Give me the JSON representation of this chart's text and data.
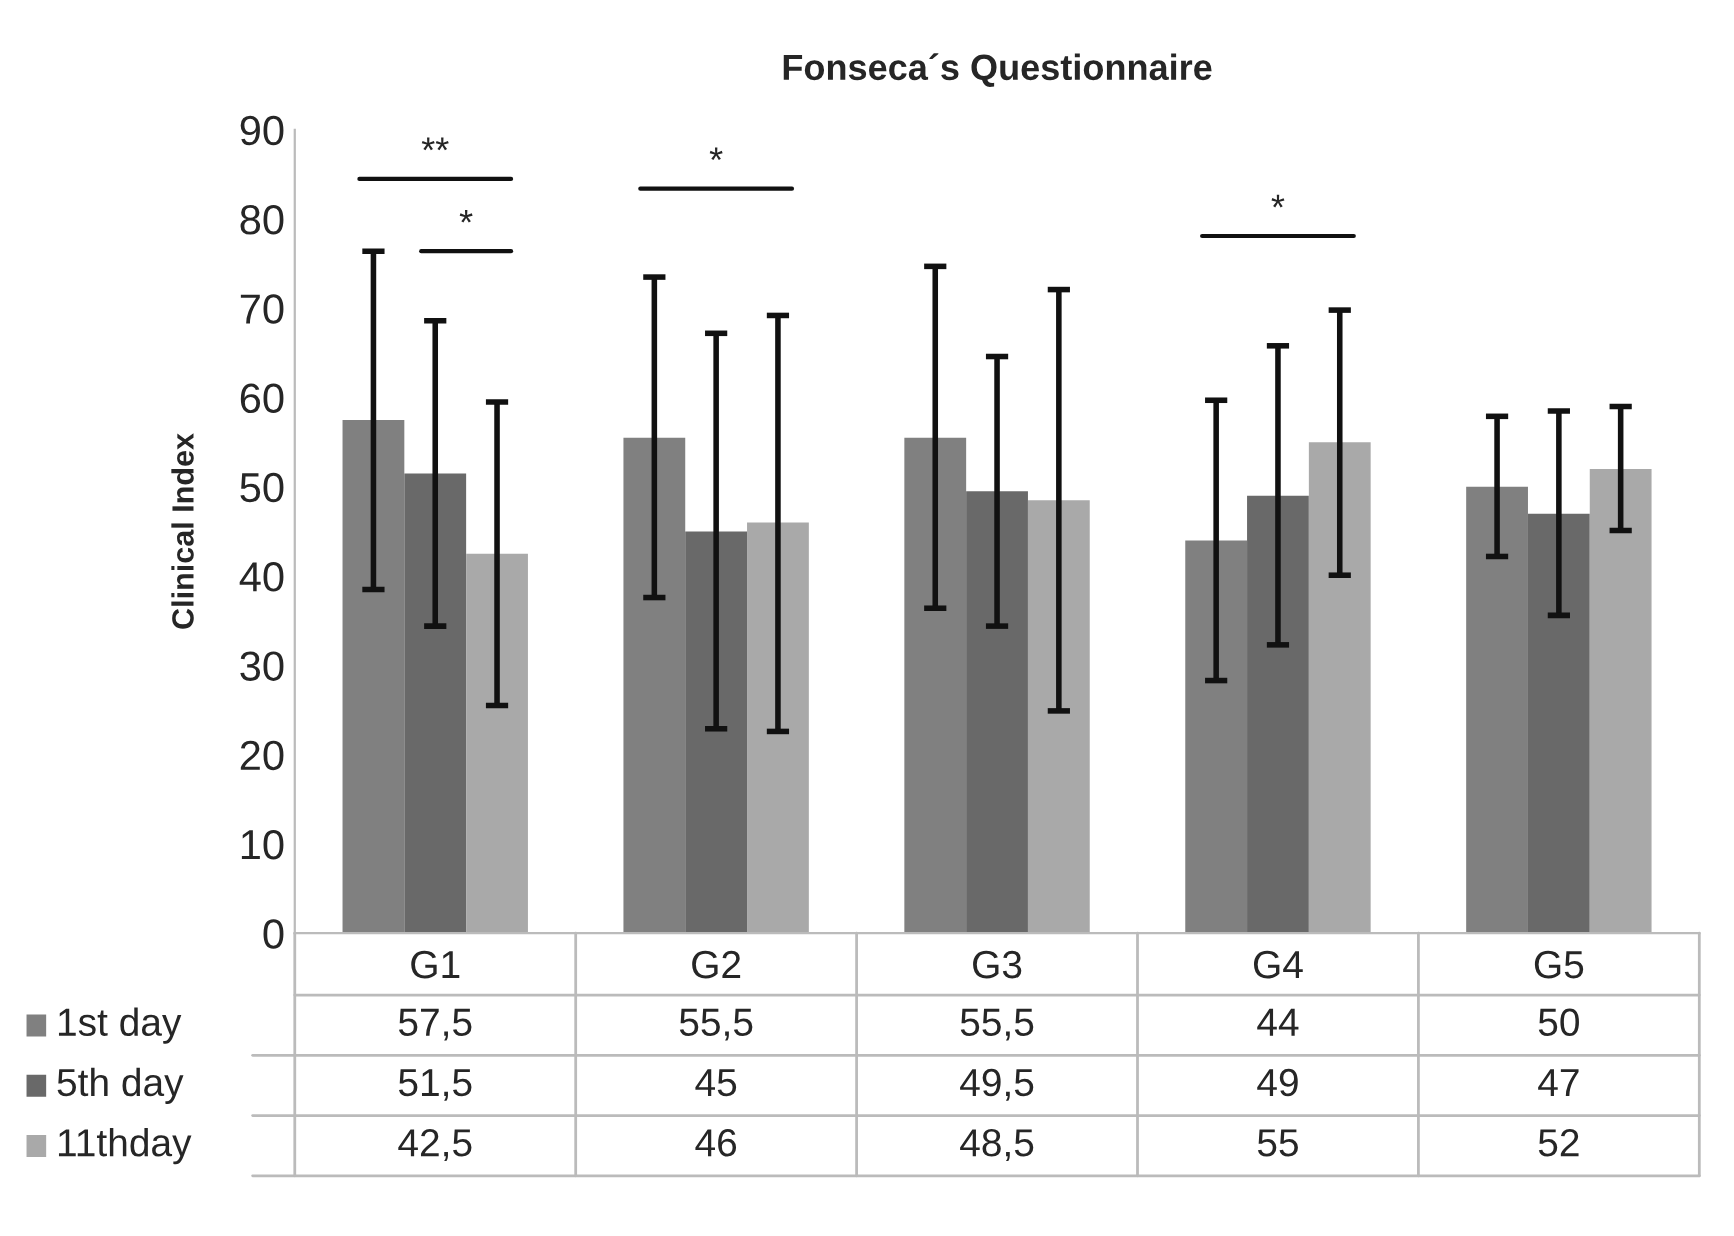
{
  "chart_data": {
    "type": "bar",
    "title": "Fonseca´s Questionnaire",
    "ylabel": "Clinical Index",
    "categories": [
      "G1",
      "G2",
      "G3",
      "G4",
      "G5"
    ],
    "series": [
      {
        "name": "1st day",
        "color": "#808080",
        "values": [
          57.5,
          55.5,
          55.5,
          44,
          50
        ],
        "value_labels": [
          "57,5",
          "55,5",
          "55,5",
          "44",
          "50"
        ],
        "errors": [
          [
            38.5,
            76.4
          ],
          [
            37.6,
            73.5
          ],
          [
            36.4,
            74.7
          ],
          [
            28.3,
            59.7
          ],
          [
            42.2,
            57.9
          ]
        ]
      },
      {
        "name": "5th day",
        "color": "#696969",
        "values": [
          51.5,
          45,
          49.5,
          49,
          47
        ],
        "value_labels": [
          "51,5",
          "45",
          "49,5",
          "49",
          "47"
        ],
        "errors": [
          [
            34.4,
            68.6
          ],
          [
            22.9,
            67.2
          ],
          [
            34.4,
            64.6
          ],
          [
            32.3,
            65.8
          ],
          [
            35.6,
            58.5
          ]
        ]
      },
      {
        "name": "11thday",
        "color": "#a9a9a9",
        "values": [
          42.5,
          46,
          48.5,
          55,
          52
        ],
        "value_labels": [
          "42,5",
          "46",
          "48,5",
          "55",
          "52"
        ],
        "errors": [
          [
            25.5,
            59.5
          ],
          [
            22.6,
            69.2
          ],
          [
            24.9,
            72.1
          ],
          [
            40.1,
            69.8
          ],
          [
            45.1,
            59.0
          ]
        ]
      }
    ],
    "ylim": [
      0,
      90
    ],
    "yticks": [
      0,
      10,
      20,
      30,
      40,
      50,
      60,
      70,
      80,
      90
    ],
    "annotations": [
      "**",
      "*",
      "*",
      "*"
    ],
    "legend": "bottom",
    "grid": false
  }
}
